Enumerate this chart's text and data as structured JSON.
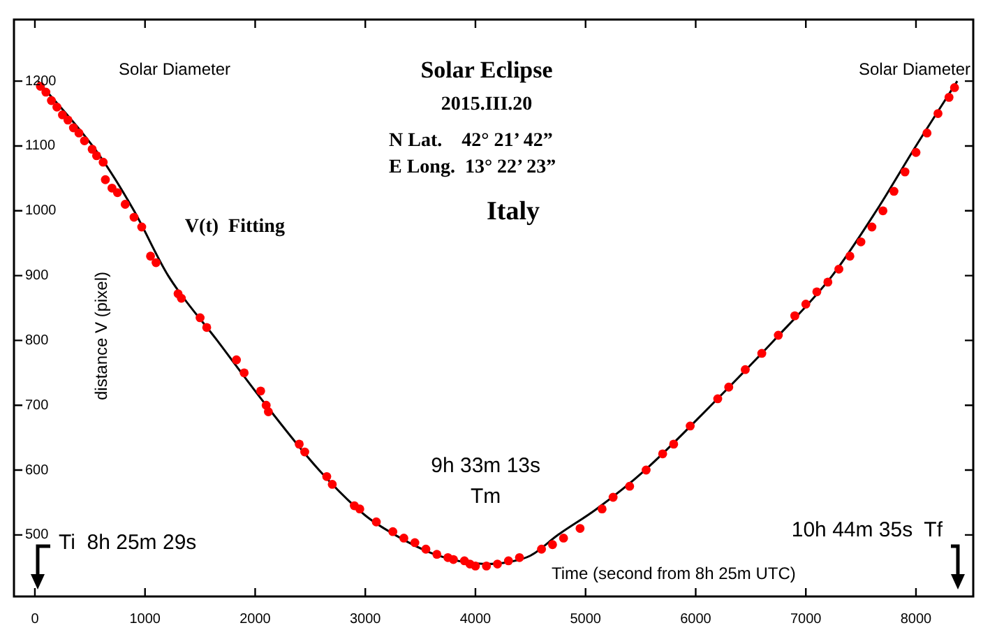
{
  "chart_data": {
    "type": "scatter",
    "title": "Solar Eclipse",
    "subtitle": "2015.III.20",
    "xlabel": "Time (second from 8h 25m UTC)",
    "ylabel": "distance V (pixel)",
    "xlim": [
      -190,
      8520
    ],
    "ylim": [
      405,
      1295
    ],
    "xticks": [
      0,
      1000,
      2000,
      3000,
      4000,
      5000,
      6000,
      7000,
      8000
    ],
    "yticks": [
      500,
      600,
      700,
      800,
      900,
      1000,
      1100,
      1200
    ],
    "grid": false,
    "legend": false,
    "annotations": [
      "N Lat.    42° 21’ 42”",
      "E Long.  13° 22’ 23”",
      "Italy",
      "Solar Diameter",
      "Solar Diameter",
      "Ti  8h 25m 29s",
      "10h 44m 35s  Tf",
      {
        "text": "9h 33m 13s\nTm",
        "x": 4093,
        "y": 455
      }
    ],
    "series": [
      {
        "color": "#ff0000",
        "marker": "circle",
        "x": [
          50,
          100,
          150,
          200,
          250,
          300,
          350,
          400,
          450,
          520,
          560,
          620,
          640,
          700,
          750,
          820,
          900,
          970,
          1050,
          1100,
          1300,
          1330,
          1500,
          1560,
          1830,
          1900,
          2050,
          2100,
          2120,
          2400,
          2450,
          2650,
          2700,
          2900,
          2950,
          3100,
          3250,
          3350,
          3450,
          3550,
          3650,
          3750,
          3800,
          3900,
          3950,
          4000,
          4100,
          4200,
          4300,
          4400,
          4600,
          4700,
          4800,
          4950,
          5150,
          5250,
          5400,
          5550,
          5700,
          5800,
          5950,
          6200,
          6300,
          6450,
          6600,
          6750,
          6900,
          7000,
          7100,
          7200,
          7300,
          7400,
          7500,
          7600,
          7700,
          7800,
          7900,
          8000,
          8100,
          8200,
          8300,
          8350
        ],
        "values": [
          1192,
          1183,
          1170,
          1160,
          1148,
          1140,
          1128,
          1120,
          1108,
          1095,
          1085,
          1075,
          1048,
          1035,
          1028,
          1010,
          990,
          975,
          930,
          920,
          872,
          865,
          835,
          820,
          770,
          750,
          722,
          700,
          690,
          640,
          628,
          590,
          578,
          545,
          540,
          520,
          505,
          495,
          488,
          478,
          470,
          465,
          462,
          460,
          455,
          452,
          452,
          455,
          460,
          465,
          478,
          485,
          495,
          510,
          540,
          558,
          575,
          600,
          625,
          640,
          668,
          710,
          728,
          755,
          780,
          808,
          838,
          856,
          875,
          890,
          910,
          930,
          952,
          975,
          1000,
          1030,
          1060,
          1090,
          1120,
          1150,
          1175,
          1190
        ]
      },
      {
        "type": "line",
        "name": "V(t)  Fitting",
        "color": "#000000",
        "marker": "none",
        "line_style": "solid",
        "x": [
          29,
          580,
          900,
          1210,
          1655,
          2100,
          2580,
          3000,
          3270,
          3600,
          3900,
          4093,
          4300,
          4500,
          4750,
          5100,
          5540,
          6140,
          6710,
          7240,
          7640,
          8000,
          8375
        ],
        "values": [
          1200,
          1087,
          1000,
          900,
          800,
          700,
          600,
          530,
          500,
          472,
          458,
          455,
          458,
          468,
          500,
          540,
          600,
          700,
          800,
          900,
          1000,
          1100,
          1200
        ]
      }
    ]
  }
}
